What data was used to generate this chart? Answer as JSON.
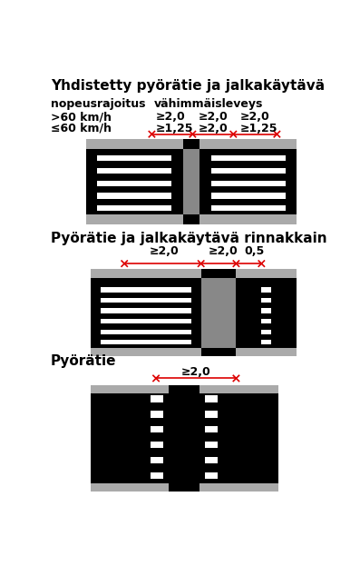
{
  "title1": "Yhdistetty pyörätie ja jalkakäytävä",
  "title2": "Pyörätie ja jalkakäytävä rinnakkain",
  "title3": "Pyörätie",
  "label_speed": "nopeusrajoitus",
  "label_width": "vähimmäisleveys",
  "row1_speed": ">60 km/h",
  "row2_speed": "≤60 km/h",
  "row1_vals": [
    "≥2,0",
    "≥2,0",
    "≥2,0"
  ],
  "row2_vals": [
    "≥1,25",
    "≥2,0",
    "≥1,25"
  ],
  "sec2_vals": [
    "≥2,0",
    "≥2,0",
    "0,5"
  ],
  "sec3_val": "≥2,0",
  "bg_color": "#ffffff",
  "gray_light": "#aaaaaa",
  "gray_mid": "#888888",
  "black": "#000000",
  "white": "#ffffff",
  "red": "#dd0000"
}
